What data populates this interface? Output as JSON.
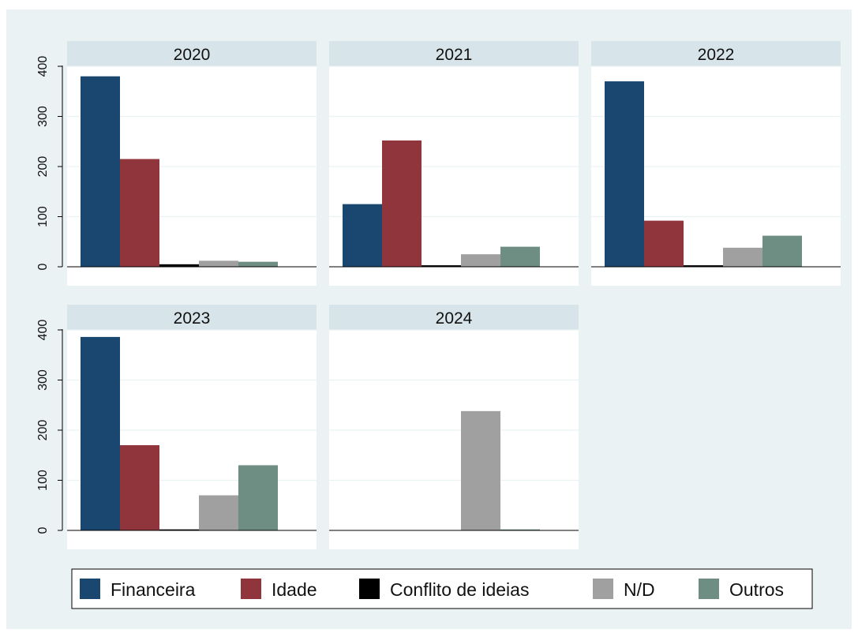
{
  "chart_data": {
    "type": "bar",
    "categories": [
      "Financeira",
      "Idade",
      "Conflito de ideias",
      "N/D",
      "Outros"
    ],
    "colors": [
      "#1a476f",
      "#90353b",
      "#000000",
      "#a0a0a0",
      "#6e8e84"
    ],
    "ylim": [
      0,
      400
    ],
    "yticks": [
      0,
      100,
      200,
      300,
      400
    ],
    "grid": true,
    "legend_position": "bottom",
    "panels": [
      {
        "title": "2020",
        "values": [
          380,
          215,
          5,
          12,
          10
        ]
      },
      {
        "title": "2021",
        "values": [
          125,
          252,
          3,
          25,
          40
        ]
      },
      {
        "title": "2022",
        "values": [
          370,
          92,
          3,
          38,
          62
        ]
      },
      {
        "title": "2023",
        "values": [
          386,
          170,
          2,
          70,
          130
        ]
      },
      {
        "title": "2024",
        "values": [
          0,
          0,
          0,
          238,
          2
        ]
      }
    ]
  }
}
